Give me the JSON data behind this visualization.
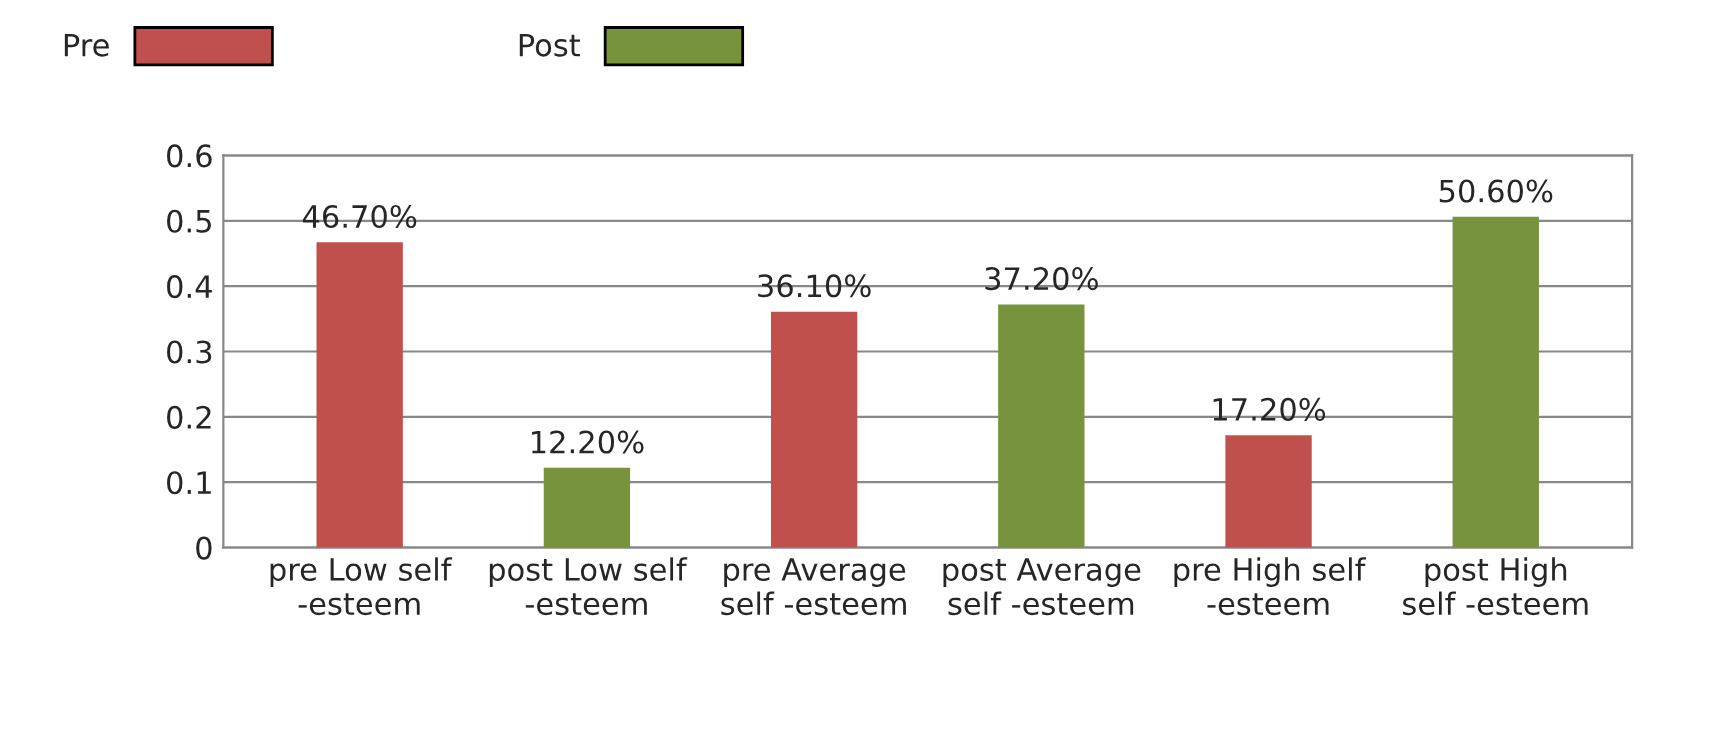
{
  "chart_data": {
    "type": "bar",
    "categories": [
      "pre Low self\n-esteem",
      "post Low self\n-esteem",
      "pre Average\nself -esteem",
      "post Average\nself -esteem",
      "pre High self\n-esteem",
      "post High\nself -esteem"
    ],
    "series": [
      {
        "name": "Pre",
        "color": "#c0504d",
        "values": [
          0.467,
          null,
          0.361,
          null,
          0.172,
          null
        ],
        "value_labels": [
          "46.70%",
          null,
          "36.10%",
          null,
          "17.20%",
          null
        ]
      },
      {
        "name": "Post",
        "color": "#77933c",
        "values": [
          null,
          0.122,
          null,
          0.372,
          null,
          0.506
        ],
        "value_labels": [
          null,
          "12.20%",
          null,
          "37.20%",
          null,
          "50.60%"
        ]
      }
    ],
    "ylim": [
      0,
      0.6
    ],
    "yticks": [
      0,
      0.1,
      0.2,
      0.3,
      0.4,
      0.5,
      0.6
    ],
    "grid": "y",
    "legend": "top left"
  }
}
